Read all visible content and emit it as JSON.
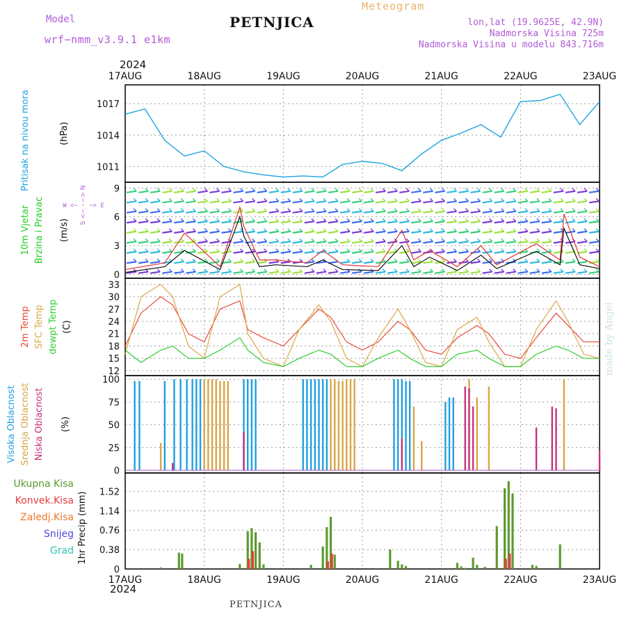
{
  "header": {
    "title": "PETNJICA",
    "meteogram_label": "Meteogram",
    "model_label": "Model",
    "model_value": "wrf−nmm_v3.9.1  e1km",
    "location_lonlat": "lon,lat (19.9625E, 42.9N)",
    "elevation": "Nadmorska Visina 725m",
    "model_elevation": "Nadmorska Visina u modelu 843.716m",
    "year_top": "2024",
    "year_bottom": "2024",
    "footer_station": "PETNJICA",
    "credit": "made by Angel"
  },
  "colors": {
    "pressure": "#1fa3e0",
    "wind_speed_max": "#e03434",
    "wind_speed": "#111111",
    "temp_2m": "#e84a3a",
    "temp_sfc": "#dba84a",
    "dewpoint": "#2ecc2e",
    "cloud_high": "#1f9fe0",
    "cloud_mid": "#d8a547",
    "cloud_low": "#c9317a",
    "rain_total": "#5c9a2e",
    "rain_conv": "#e53d3d",
    "freezing": "#f07830",
    "snow": "#4b4bdc",
    "hail": "#2ec4b0",
    "grid": "#9a9a9a"
  },
  "chart_data": [
    {
      "type": "line",
      "panel": "pressure",
      "ylabel": "Pritisak na nivou mora",
      "unit_label": "(hPa)",
      "x_ticks": [
        "17AUG",
        "18AUG",
        "19AUG",
        "20AUG",
        "21AUG",
        "22AUG",
        "23AUG"
      ],
      "y_ticks": [
        1011,
        1014,
        1017
      ],
      "ylim": [
        1009.5,
        1018.8
      ],
      "grid": true,
      "series": [
        {
          "x_days": [
            0,
            0.25,
            0.5,
            0.75,
            1,
            1.25,
            1.5,
            1.75,
            2,
            2.25,
            2.5,
            2.75,
            3,
            3.25,
            3.5,
            3.75,
            4,
            4.25,
            4.5,
            4.75,
            5,
            5.25,
            5.5,
            5.75,
            6
          ],
          "values": [
            1016.0,
            1016.5,
            1013.5,
            1012.0,
            1012.5,
            1011.0,
            1010.5,
            1010.2,
            1010.0,
            1010.1,
            1010.0,
            1011.2,
            1011.5,
            1011.3,
            1010.6,
            1012.2,
            1013.5,
            1014.2,
            1015.0,
            1013.8,
            1017.2,
            1017.3,
            1017.9,
            1015.0,
            1017.2
          ]
        }
      ]
    },
    {
      "type": "line",
      "panel": "wind",
      "ylabel_lines": [
        "10m Vjetar",
        "Brzina i Pravac"
      ],
      "unit_label": "(m/s)",
      "direction_legend": [
        "W <− · −> E",
        "S <− · −> N"
      ],
      "y_ticks": [
        0,
        3,
        6,
        9
      ],
      "ylim": [
        -0.4,
        9.6
      ],
      "series": [
        {
          "name": "max",
          "x_days": [
            0,
            0.5,
            0.75,
            1.2,
            1.45,
            1.5,
            1.7,
            1.9,
            2.3,
            2.5,
            2.75,
            3.2,
            3.5,
            3.65,
            3.85,
            4.2,
            4.5,
            4.7,
            5.2,
            5.5,
            5.55,
            5.75,
            6
          ],
          "values": [
            0.5,
            1.2,
            4.3,
            0.8,
            7.0,
            5.0,
            1.5,
            1.5,
            1.2,
            2.5,
            1.0,
            0.8,
            4.6,
            1.5,
            2.5,
            0.8,
            3.0,
            1.0,
            3.2,
            1.5,
            6.3,
            1.8,
            0.8
          ]
        },
        {
          "name": "speed",
          "x_days": [
            0,
            0.5,
            0.75,
            1.2,
            1.45,
            1.5,
            1.7,
            1.9,
            2.3,
            2.5,
            2.75,
            3.2,
            3.5,
            3.65,
            3.85,
            4.2,
            4.5,
            4.7,
            5.2,
            5.5,
            5.55,
            5.75,
            6
          ],
          "values": [
            0.2,
            0.8,
            2.5,
            0.5,
            6.0,
            4.0,
            0.8,
            1.0,
            0.8,
            1.5,
            0.5,
            0.4,
            3.0,
            0.8,
            1.8,
            0.4,
            2.0,
            0.6,
            2.4,
            1.0,
            4.8,
            1.0,
            0.6
          ]
        }
      ]
    },
    {
      "type": "line",
      "panel": "temperature",
      "ylabel_lines": [
        "2m Temp",
        "SFC Temp",
        "dewpt Temp"
      ],
      "unit_label": "(C)",
      "y_ticks": [
        12,
        15,
        18,
        21,
        24,
        27,
        30,
        33
      ],
      "ylim": [
        10.8,
        34.5
      ],
      "series": [
        {
          "name": "2m Temp",
          "x_days": [
            0,
            0.2,
            0.45,
            0.6,
            0.8,
            1.0,
            1.2,
            1.45,
            1.55,
            1.75,
            2.0,
            2.2,
            2.45,
            2.6,
            2.8,
            3.0,
            3.2,
            3.45,
            3.6,
            3.8,
            4.0,
            4.2,
            4.45,
            4.6,
            4.8,
            5.0,
            5.2,
            5.45,
            5.6,
            5.8,
            6.0
          ],
          "values": [
            18,
            26,
            30,
            28,
            21,
            19,
            27,
            29,
            22,
            20,
            18,
            22,
            27,
            25,
            19,
            17,
            19,
            24,
            22,
            17,
            16,
            20,
            23,
            21,
            16,
            15,
            20,
            26,
            23,
            19,
            19
          ]
        },
        {
          "name": "SFC Temp",
          "x_days": [
            0,
            0.2,
            0.45,
            0.6,
            0.8,
            1.0,
            1.2,
            1.45,
            1.55,
            1.75,
            2.0,
            2.2,
            2.45,
            2.6,
            2.8,
            3.0,
            3.2,
            3.45,
            3.6,
            3.8,
            4.0,
            4.2,
            4.45,
            4.6,
            4.8,
            5.0,
            5.2,
            5.45,
            5.6,
            5.8,
            6.0
          ],
          "values": [
            16,
            30,
            33,
            30,
            18,
            15,
            30,
            33,
            21,
            15,
            13,
            22,
            28,
            24,
            15,
            13,
            20,
            27,
            22,
            14,
            13,
            22,
            25,
            19,
            13,
            13,
            22,
            29,
            24,
            16,
            15
          ]
        },
        {
          "name": "dewpt Temp",
          "x_days": [
            0,
            0.2,
            0.45,
            0.6,
            0.8,
            1.0,
            1.2,
            1.45,
            1.55,
            1.75,
            2.0,
            2.2,
            2.45,
            2.6,
            2.8,
            3.0,
            3.2,
            3.45,
            3.6,
            3.8,
            4.0,
            4.2,
            4.45,
            4.6,
            4.8,
            5.0,
            5.2,
            5.45,
            5.6,
            5.8,
            6.0
          ],
          "values": [
            17,
            14,
            17,
            18,
            15,
            15,
            17,
            20,
            17,
            14,
            13,
            15,
            17,
            16,
            13,
            13,
            15,
            17,
            15,
            13,
            13,
            16,
            17,
            15,
            13,
            13,
            16,
            18,
            17,
            15,
            15
          ]
        }
      ]
    },
    {
      "type": "bar",
      "panel": "cloud",
      "ylabel_lines": [
        "Visoka Oblacnost",
        "Srednja Oblacnost",
        "Niska Oblacnost"
      ],
      "unit_label": "(%)",
      "y_ticks": [
        0,
        25,
        50,
        75,
        100
      ],
      "ylim": [
        -3,
        104
      ],
      "series": [
        {
          "name": "Visoka Oblacnost",
          "x_days": [
            0.12,
            0.18,
            0.5,
            0.62,
            0.7,
            0.78,
            0.85,
            0.9,
            0.95,
            1.5,
            1.55,
            1.6,
            1.65,
            2.25,
            2.3,
            2.35,
            2.4,
            2.45,
            2.5,
            2.55,
            3.4,
            3.45,
            3.5,
            3.55,
            3.6,
            4.05,
            4.1,
            4.15
          ],
          "values": [
            98,
            98,
            98,
            100,
            100,
            100,
            100,
            100,
            100,
            100,
            100,
            100,
            100,
            100,
            100,
            100,
            100,
            100,
            100,
            100,
            100,
            100,
            100,
            98,
            98,
            75,
            80,
            80
          ]
        },
        {
          "name": "Srednja Oblacnost",
          "x_days": [
            0.45,
            1.0,
            1.05,
            1.1,
            1.15,
            1.2,
            1.25,
            1.3,
            2.6,
            2.65,
            2.7,
            2.75,
            2.8,
            2.85,
            2.9,
            3.65,
            3.75,
            4.35,
            4.45,
            4.6,
            5.55,
            6.0
          ],
          "values": [
            30,
            100,
            100,
            100,
            100,
            98,
            98,
            98,
            100,
            100,
            98,
            98,
            100,
            100,
            100,
            70,
            32,
            100,
            80,
            92,
            100,
            5
          ]
        },
        {
          "name": "Niska Oblacnost",
          "x_days": [
            0.6,
            1.5,
            3.5,
            4.3,
            4.35,
            4.4,
            5.2,
            5.4,
            5.45,
            6.0
          ],
          "values": [
            8,
            42,
            35,
            92,
            90,
            70,
            47,
            70,
            68,
            22
          ]
        }
      ]
    },
    {
      "type": "bar",
      "panel": "precipitation",
      "ylabel": "1hr Precip",
      "unit_label": "(mm)",
      "legend": [
        "Ukupna Kisa",
        "Konvek.Kisa",
        "Zaledj.Kisa",
        "Snijeg",
        "Grad"
      ],
      "y_ticks": [
        0,
        0.38,
        0.76,
        1.14,
        1.52
      ],
      "ylim": [
        0,
        1.88
      ],
      "series": [
        {
          "name": "Ukupna Kisa",
          "x_days": [
            0.45,
            0.68,
            0.72,
            1.45,
            1.55,
            1.6,
            1.65,
            1.7,
            1.75,
            2.35,
            2.5,
            2.55,
            2.6,
            2.65,
            3.35,
            3.45,
            3.5,
            3.55,
            4.2,
            4.25,
            4.3,
            4.4,
            4.45,
            4.55,
            4.7,
            4.8,
            4.85,
            4.9,
            5.15,
            5.2,
            5.5
          ],
          "values": [
            0.03,
            0.32,
            0.3,
            0.1,
            0.74,
            0.8,
            0.72,
            0.52,
            0.09,
            0.08,
            0.44,
            0.82,
            1.02,
            0.28,
            0.38,
            0.16,
            0.09,
            0.06,
            0.12,
            0.05,
            0.02,
            0.22,
            0.08,
            0.04,
            0.84,
            1.58,
            1.72,
            1.48,
            0.08,
            0.06,
            0.48
          ]
        },
        {
          "name": "Konvek.Kisa",
          "x_days": [
            1.55,
            1.6,
            2.55,
            2.6,
            4.8,
            4.85
          ],
          "values": [
            0.2,
            0.35,
            0.15,
            0.3,
            0.2,
            0.3
          ]
        }
      ]
    }
  ]
}
